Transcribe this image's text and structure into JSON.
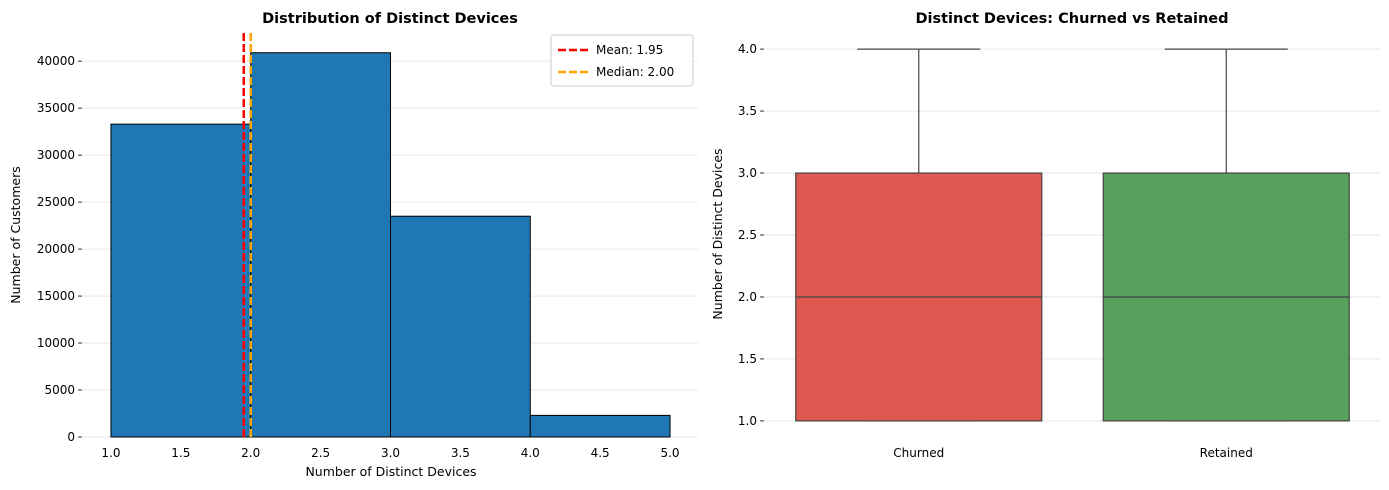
{
  "chart_data": [
    {
      "type": "bar",
      "title": "Distribution of Distinct Devices",
      "xlabel": "Number of Distinct Devices",
      "ylabel": "Number of Customers",
      "xlim": [
        0.8,
        5.2
      ],
      "ylim": [
        0,
        43000
      ],
      "xticks": [
        1.0,
        1.5,
        2.0,
        2.5,
        3.0,
        3.5,
        4.0,
        4.5,
        5.0
      ],
      "xtick_labels": [
        "1.0",
        "1.5",
        "2.0",
        "2.5",
        "3.0",
        "3.5",
        "4.0",
        "4.5",
        "5.0"
      ],
      "yticks": [
        0,
        5000,
        10000,
        15000,
        20000,
        25000,
        30000,
        35000,
        40000
      ],
      "ytick_labels": [
        "0",
        "5000",
        "10000",
        "15000",
        "20000",
        "25000",
        "30000",
        "35000",
        "40000"
      ],
      "bins": [
        {
          "x0": 1.0,
          "x1": 2.0,
          "value": 33300
        },
        {
          "x0": 2.0,
          "x1": 3.0,
          "value": 40900
        },
        {
          "x0": 3.0,
          "x1": 4.0,
          "value": 23500
        },
        {
          "x0": 4.0,
          "x1": 5.0,
          "value": 2300
        }
      ],
      "bar_color": "#1f77b4",
      "reference_lines": [
        {
          "label": "Mean: 1.95",
          "value": 1.95,
          "color": "#ff0000"
        },
        {
          "label": "Median: 2.00",
          "value": 2.0,
          "color": "#ffa500"
        }
      ],
      "legend_position": "top-right",
      "grid": "y"
    },
    {
      "type": "box",
      "title": "Distinct Devices: Churned vs Retained",
      "xlabel": "",
      "ylabel": "Number of Distinct Devices",
      "ylim": [
        0.87,
        4.13
      ],
      "yticks": [
        1.0,
        1.5,
        2.0,
        2.5,
        3.0,
        3.5,
        4.0
      ],
      "ytick_labels": [
        "1.0",
        "1.5",
        "2.0",
        "2.5",
        "3.0",
        "3.5",
        "4.0"
      ],
      "categories": [
        "Churned",
        "Retained"
      ],
      "boxes": [
        {
          "category": "Churned",
          "min": 1.0,
          "q1": 1.0,
          "median": 2.0,
          "q3": 3.0,
          "max": 4.0,
          "color": "#de5a50"
        },
        {
          "category": "Retained",
          "min": 1.0,
          "q1": 1.0,
          "median": 2.0,
          "q3": 3.0,
          "max": 4.0,
          "color": "#58a15c"
        }
      ],
      "grid": "y"
    }
  ]
}
